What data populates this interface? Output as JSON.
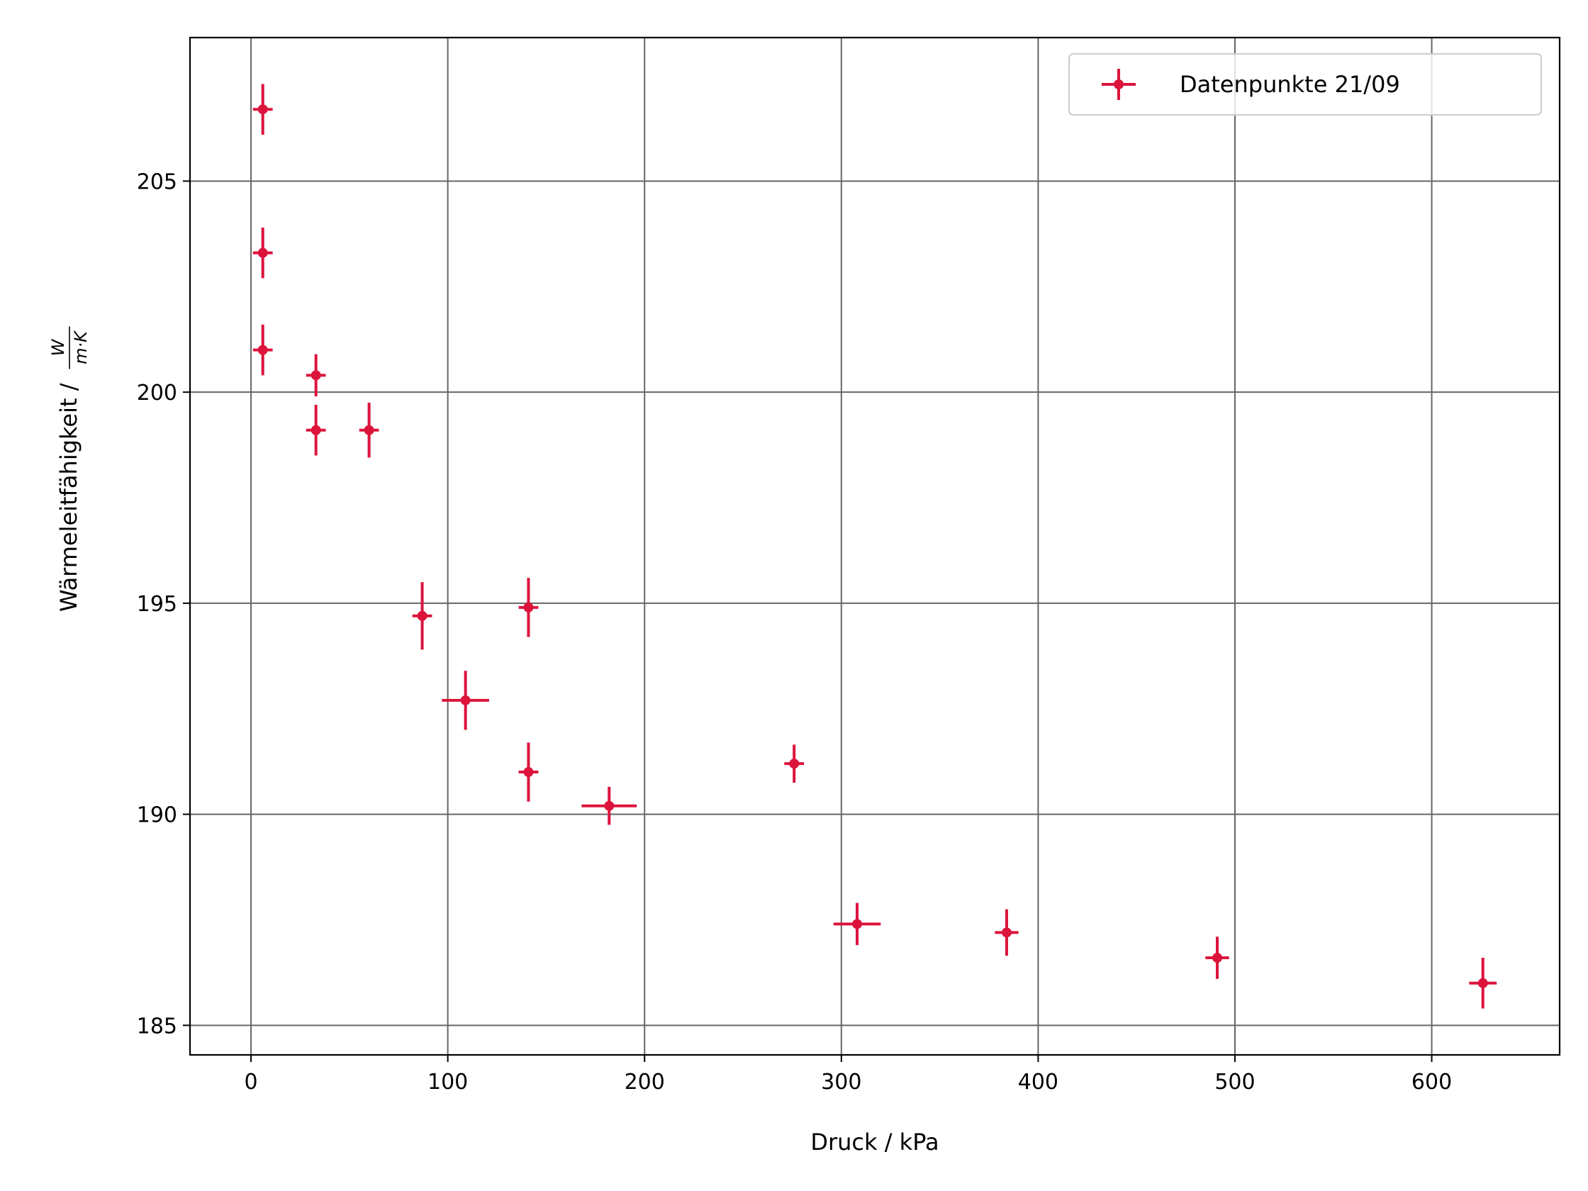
{
  "chart_data": {
    "type": "scatter",
    "title": "",
    "xlabel": "Druck / kPa",
    "ylabel": "Wärmeleitfähigkeit /",
    "ylabel_unit": {
      "numerator": "W",
      "denominator": "m·K"
    },
    "xlim": [
      -31,
      665
    ],
    "ylim": [
      184.3,
      208.4
    ],
    "xticks": [
      0,
      100,
      200,
      300,
      400,
      500,
      600
    ],
    "yticks": [
      185,
      190,
      195,
      200,
      205
    ],
    "xtick_labels": [
      "0",
      "100",
      "200",
      "300",
      "400",
      "500",
      "600"
    ],
    "ytick_labels": [
      "185",
      "190",
      "195",
      "200",
      "205"
    ],
    "grid": true,
    "legend_position": "top-right",
    "series": [
      {
        "name": "Datenpunkte 21/09",
        "color": "#dc143c",
        "marker": "circle",
        "points": [
          {
            "x": 6,
            "y": 206.7,
            "xerr": 5,
            "yerr": 0.6
          },
          {
            "x": 6,
            "y": 203.3,
            "xerr": 5,
            "yerr": 0.6
          },
          {
            "x": 6,
            "y": 201.0,
            "xerr": 5,
            "yerr": 0.6
          },
          {
            "x": 33,
            "y": 200.4,
            "xerr": 5,
            "yerr": 0.5
          },
          {
            "x": 33,
            "y": 199.1,
            "xerr": 5,
            "yerr": 0.6
          },
          {
            "x": 60,
            "y": 199.1,
            "xerr": 5,
            "yerr": 0.65
          },
          {
            "x": 87,
            "y": 194.7,
            "xerr": 5,
            "yerr": 0.8
          },
          {
            "x": 109,
            "y": 192.7,
            "xerr": 12,
            "yerr": 0.7
          },
          {
            "x": 141,
            "y": 194.9,
            "xerr": 5,
            "yerr": 0.7
          },
          {
            "x": 141,
            "y": 191.0,
            "xerr": 5,
            "yerr": 0.7
          },
          {
            "x": 182,
            "y": 190.2,
            "xerr": 14,
            "yerr": 0.45
          },
          {
            "x": 276,
            "y": 191.2,
            "xerr": 5,
            "yerr": 0.45
          },
          {
            "x": 308,
            "y": 187.4,
            "xerr": 12,
            "yerr": 0.5
          },
          {
            "x": 384,
            "y": 187.2,
            "xerr": 6,
            "yerr": 0.55
          },
          {
            "x": 491,
            "y": 186.6,
            "xerr": 6,
            "yerr": 0.5
          },
          {
            "x": 626,
            "y": 186.0,
            "xerr": 7,
            "yerr": 0.6
          }
        ]
      }
    ]
  }
}
